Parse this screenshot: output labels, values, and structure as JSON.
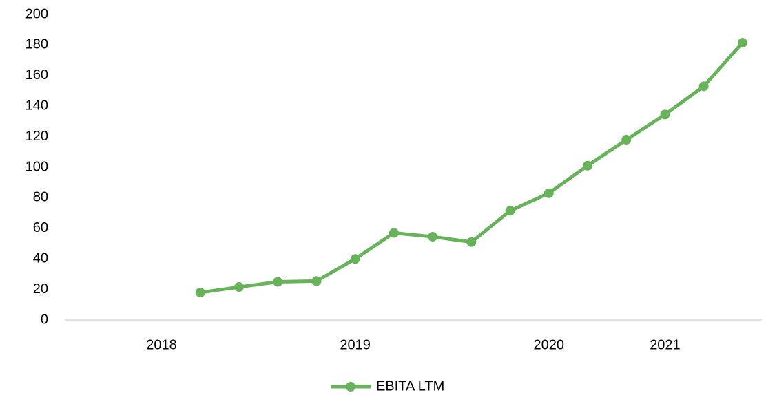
{
  "chart_data": {
    "type": "line",
    "categories": [
      null,
      null,
      "2018",
      null,
      null,
      null,
      null,
      "2019",
      null,
      null,
      null,
      null,
      "2020",
      null,
      null,
      "2021",
      null,
      null
    ],
    "series": [
      {
        "name": "EBITA LTM",
        "color": "#66b35a",
        "values": [
          null,
          null,
          null,
          18,
          21.6,
          25,
          25.5,
          40,
          57,
          54.5,
          51,
          71.5,
          83,
          101,
          118,
          134.5,
          153,
          181.5
        ]
      }
    ],
    "ylim": [
      0,
      200
    ],
    "yticks": [
      0,
      20,
      40,
      60,
      80,
      100,
      120,
      140,
      160,
      180,
      200
    ],
    "grid": false,
    "legend": "bottom"
  }
}
